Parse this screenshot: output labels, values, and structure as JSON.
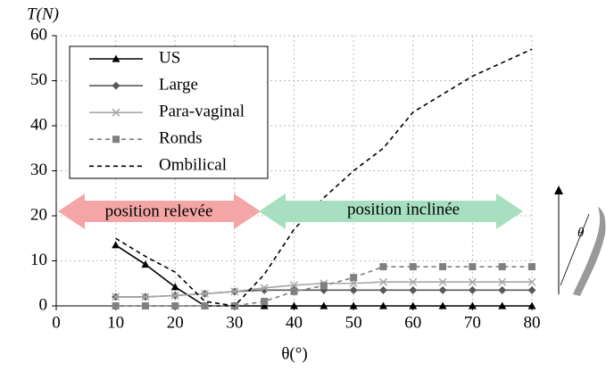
{
  "chart_data": {
    "type": "line",
    "y_label": "T(N)",
    "x_label": "θ(°)",
    "x": [
      10,
      15,
      20,
      25,
      30,
      35,
      40,
      45,
      50,
      55,
      60,
      65,
      70,
      75,
      80
    ],
    "series": [
      {
        "name": "US",
        "color": "#000000",
        "marker": "triangle",
        "dash": false,
        "values": [
          13.5,
          9.2,
          4.2,
          0,
          0,
          0,
          0,
          0,
          0,
          0,
          0,
          0,
          0,
          0,
          0
        ]
      },
      {
        "name": "Large",
        "color": "#595959",
        "marker": "diamond",
        "dash": false,
        "values": [
          2,
          2,
          2.3,
          2.7,
          3.2,
          3.5,
          3.5,
          3.5,
          3.5,
          3.5,
          3.5,
          3.5,
          3.5,
          3.5,
          3.5
        ]
      },
      {
        "name": "Para-vaginal",
        "color": "#a6a6a6",
        "marker": "x",
        "dash": false,
        "values": [
          2,
          2,
          2.3,
          2.7,
          3.2,
          4,
          4.6,
          5,
          5,
          5.3,
          5.3,
          5.3,
          5.3,
          5.3,
          5.3
        ]
      },
      {
        "name": "Ronds",
        "color": "#808080",
        "marker": "square",
        "dash": true,
        "values": [
          0,
          0,
          0,
          0,
          0,
          1,
          3.2,
          4.5,
          6.3,
          8.7,
          8.7,
          8.7,
          8.7,
          8.7,
          8.7
        ]
      },
      {
        "name": "Ombilical",
        "color": "#000000",
        "marker": "none",
        "dash": true,
        "values": [
          15,
          11,
          7.5,
          1,
          0,
          7,
          17,
          24,
          30,
          35,
          43,
          47,
          51,
          54,
          57
        ]
      }
    ],
    "xlim": [
      0,
      80
    ],
    "ylim": [
      0,
      60
    ],
    "xticks": [
      0,
      10,
      20,
      30,
      40,
      50,
      60,
      70,
      80
    ],
    "yticks": [
      0,
      10,
      20,
      30,
      40,
      50,
      60
    ],
    "grid": true,
    "annotations": [
      "position relevée",
      "position inclinée"
    ],
    "figure_label": "θ"
  }
}
